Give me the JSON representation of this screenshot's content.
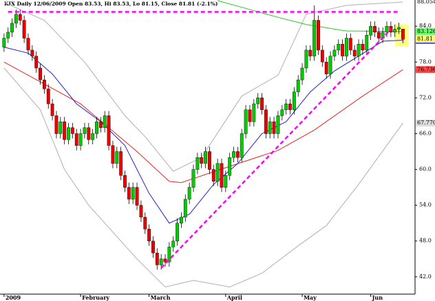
{
  "chart_data": {
    "type": "candlestick",
    "title": "KIX  Daily 12/06/2009 Open 83.53, Hi 83.53, Lo 81.15, Close 81.81 (-2.1%)",
    "up_color": "#00cc00",
    "down_color": "#ee0000",
    "xlim": [
      -1,
      102
    ],
    "ylim": [
      39.1,
      88.4
    ],
    "xticks": [
      {
        "value": 0,
        "label": "2009"
      },
      {
        "value": 19,
        "label": "February"
      },
      {
        "value": 36,
        "label": "March"
      },
      {
        "value": 55,
        "label": "April"
      },
      {
        "value": 74,
        "label": "May"
      },
      {
        "value": 91,
        "label": "Jun"
      }
    ],
    "yticks": [
      {
        "value": 42,
        "label": "42.0"
      },
      {
        "value": 48,
        "label": "48.0"
      },
      {
        "value": 54,
        "label": "54.0"
      },
      {
        "value": 60,
        "label": "60.0"
      },
      {
        "value": 66,
        "label": "66.0"
      },
      {
        "value": 72,
        "label": "72.0"
      },
      {
        "value": 78,
        "label": "78.0"
      },
      {
        "value": 84,
        "label": "84.0"
      }
    ],
    "open": [
      80.5,
      82,
      83,
      84.5,
      86,
      85,
      82,
      80,
      79,
      77,
      75,
      73.5,
      71,
      69,
      66,
      68,
      65,
      67,
      66,
      64,
      66,
      67,
      65,
      66,
      68,
      67,
      69,
      64,
      61,
      63,
      59,
      57,
      55,
      57,
      54,
      52,
      50,
      48,
      46,
      44,
      45,
      44.5,
      47,
      48,
      51,
      52,
      55,
      57,
      60,
      62,
      61,
      63,
      60,
      58,
      61,
      57,
      59,
      62,
      63,
      62,
      66,
      70,
      68,
      71,
      72,
      70,
      66,
      68,
      66,
      69,
      70,
      71,
      70,
      73,
      75,
      77,
      80,
      79,
      85,
      80,
      78,
      76,
      79,
      80,
      81,
      79,
      82,
      80,
      79,
      81,
      80,
      82.5,
      84,
      83,
      82,
      83,
      84,
      83,
      83.5,
      83.53
    ],
    "high": [
      82.8,
      83.8,
      85.3,
      86.8,
      86.8,
      85.8,
      82.8,
      80.8,
      79.8,
      77.8,
      75.8,
      74.3,
      71.8,
      69.8,
      68.8,
      68.8,
      67.8,
      67.8,
      66.8,
      66.8,
      67.8,
      67.8,
      66.8,
      68.8,
      68.8,
      69.8,
      69.8,
      64.8,
      63.8,
      63.8,
      59.8,
      57.8,
      57.8,
      57.8,
      54.8,
      52.8,
      50.8,
      48.8,
      46.8,
      45.8,
      45.8,
      47.8,
      48.8,
      51.8,
      52.8,
      55.8,
      57.8,
      60.8,
      62.8,
      62.8,
      63.8,
      63.8,
      60.8,
      61.8,
      61.8,
      59.8,
      62.8,
      63.8,
      63.8,
      66.8,
      70.8,
      70.8,
      71.8,
      72.8,
      72.8,
      70.8,
      68.8,
      68.8,
      69.8,
      70.8,
      71.8,
      71.8,
      73.8,
      75.8,
      77.8,
      80.8,
      80.8,
      87.5,
      85.8,
      80.8,
      78.8,
      79.8,
      80.8,
      81.8,
      81.8,
      82.8,
      82.8,
      80.8,
      81.8,
      81.8,
      83.3,
      84.8,
      84.8,
      83.8,
      83.8,
      84.8,
      84.8,
      84.3,
      84.6,
      83.53
    ],
    "low": [
      79.7,
      81.2,
      82.2,
      83.7,
      84.2,
      81.2,
      79.2,
      78.2,
      76.2,
      74.2,
      72.7,
      70.2,
      68.2,
      65.2,
      65.2,
      64.2,
      64.2,
      65.2,
      63.2,
      63.2,
      65.2,
      64.2,
      64.2,
      65.2,
      66.2,
      66.2,
      63.2,
      60.2,
      60.2,
      58.2,
      56.2,
      54.2,
      54.2,
      53.2,
      51.2,
      49.2,
      47.2,
      45.2,
      43.2,
      43.2,
      43.7,
      43.7,
      46.2,
      47.2,
      50.2,
      51.2,
      54.2,
      56.2,
      59.2,
      60.2,
      60.2,
      59.2,
      57.2,
      57.2,
      56.2,
      56.2,
      58.2,
      61.2,
      61.2,
      61.2,
      65.2,
      67.2,
      67.2,
      70.2,
      69.2,
      65.2,
      65.2,
      65.2,
      65.2,
      68.2,
      69.2,
      69.2,
      69.2,
      72.2,
      74.2,
      76.2,
      78.2,
      78.2,
      79.2,
      77.2,
      75.2,
      75.2,
      78.2,
      79.2,
      78.2,
      78.2,
      79.2,
      78.2,
      78.2,
      79.2,
      79.2,
      81.7,
      82.2,
      81.2,
      81.2,
      82.2,
      82.2,
      82.2,
      82.7,
      81.15
    ],
    "close": [
      82,
      83,
      84.5,
      86,
      85,
      82,
      80,
      79,
      77,
      75,
      73.5,
      71,
      69,
      66,
      68,
      65,
      67,
      66,
      64,
      66,
      67,
      65,
      66,
      68,
      67,
      69,
      64,
      61,
      63,
      59,
      57,
      55,
      57,
      54,
      52,
      50,
      48,
      46,
      44,
      45,
      44.5,
      47,
      48,
      51,
      52,
      55,
      57,
      60,
      62,
      61,
      63,
      60,
      58,
      61,
      57,
      59,
      62,
      63,
      62,
      66,
      70,
      68,
      71,
      72,
      70,
      66,
      68,
      66,
      69,
      70,
      71,
      70,
      73,
      75,
      77,
      80,
      79,
      85,
      80,
      78,
      76,
      79,
      80,
      81,
      79,
      82,
      80,
      79,
      81,
      80,
      82.5,
      84,
      83,
      82,
      83,
      84,
      83,
      83.5,
      83.8,
      81.81
    ],
    "close_label_color": "#ffff66",
    "lines": [
      {
        "color": "#b0b0b0",
        "label_color": "#ffffff",
        "x": [
          0,
          10,
          20,
          30,
          35,
          42,
          49,
          59,
          68,
          75,
          85,
          99
        ],
        "values": [
          88,
          85,
          78,
          69,
          65.5,
          59.7,
          62,
          72.3,
          75.8,
          86,
          87.5,
          88.0541
        ]
      },
      {
        "color": "#b0b0b0",
        "label_color": "#dddddd",
        "x": [
          0,
          9,
          15,
          21,
          33,
          40,
          47,
          56,
          64,
          73,
          80,
          88,
          99
        ],
        "values": [
          77,
          70,
          60,
          54,
          45,
          40.3,
          41.4,
          40.3,
          42.6,
          47.2,
          50.6,
          57.5,
          67.7709
        ]
      },
      {
        "color": "#22cc22",
        "label_color": "#66ff66",
        "x": [
          53,
          60,
          68,
          75,
          85,
          99
        ],
        "values": [
          88.3,
          87,
          85.5,
          84.3,
          83.2,
          83.1263
        ]
      },
      {
        "color": "#ee2222",
        "label_color": "#ff4444",
        "x": [
          0,
          19,
          33,
          41,
          44,
          55,
          68,
          77,
          89,
          99
        ],
        "values": [
          78,
          71,
          63,
          58,
          57.8,
          60.3,
          63.2,
          66.6,
          72.3,
          76.7369
        ]
      },
      {
        "color": "#2222cc",
        "label_color": "#0000ff",
        "x": [
          0,
          6,
          12,
          18,
          24,
          30,
          36,
          41,
          46,
          52,
          58,
          64,
          70,
          76,
          82,
          88,
          94,
          99
        ],
        "values": [
          80.5,
          79.5,
          76,
          71,
          68,
          64,
          56,
          51,
          52.5,
          57.5,
          61,
          66,
          68,
          73,
          76.5,
          79,
          81.5,
          81.6587
        ]
      }
    ],
    "trendlines": [
      {
        "color": "#ff00ff",
        "x": [
          1,
          98
        ],
        "values": [
          86.4,
          86.4
        ]
      },
      {
        "color": "#ff00ff",
        "x": [
          39,
          96
        ],
        "values": [
          43.5,
          83.5
        ]
      }
    ]
  }
}
